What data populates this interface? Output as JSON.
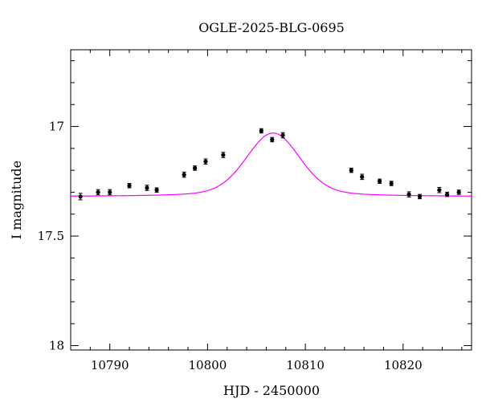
{
  "chart_data": {
    "type": "scatter",
    "title": "OGLE-2025-BLG-0695",
    "xlabel": "HJD - 2450000",
    "ylabel": "I magnitude",
    "xlim": [
      10786,
      10827
    ],
    "ylim": [
      18.02,
      16.65
    ],
    "y_inverted": true,
    "xticks": [
      10790,
      10800,
      10810,
      10820
    ],
    "xtick_labels": [
      "10790",
      "10800",
      "10810",
      "10820"
    ],
    "yticks": [
      17,
      17.5,
      18
    ],
    "ytick_labels": [
      "17",
      "17.5",
      "18"
    ],
    "grid": false,
    "legend": "none",
    "colors": {
      "data": "#000000",
      "model": "#ff00ff"
    },
    "series": [
      {
        "kind": "points",
        "x": [
          10787.0,
          10788.8,
          10790.0,
          10792.0,
          10793.8,
          10794.8,
          10797.6,
          10798.7,
          10799.8,
          10801.6,
          10805.5,
          10806.6,
          10807.7,
          10814.7,
          10815.8,
          10817.6,
          10818.8,
          10820.6,
          10821.7,
          10823.7,
          10824.5,
          10825.7
        ],
        "y": [
          17.32,
          17.3,
          17.3,
          17.27,
          17.28,
          17.29,
          17.22,
          17.19,
          17.16,
          17.13,
          17.02,
          17.06,
          17.04,
          17.2,
          17.23,
          17.25,
          17.26,
          17.31,
          17.32,
          17.29,
          17.31,
          17.3
        ],
        "yerr": [
          0.015,
          0.012,
          0.012,
          0.01,
          0.012,
          0.01,
          0.012,
          0.01,
          0.012,
          0.012,
          0.01,
          0.01,
          0.012,
          0.01,
          0.012,
          0.01,
          0.01,
          0.012,
          0.01,
          0.012,
          0.01,
          0.01
        ]
      },
      {
        "kind": "model",
        "t0": 10806.7,
        "width": 3.8,
        "baseline": 17.32,
        "peak": 17.03,
        "wing": 0.035
      }
    ]
  }
}
